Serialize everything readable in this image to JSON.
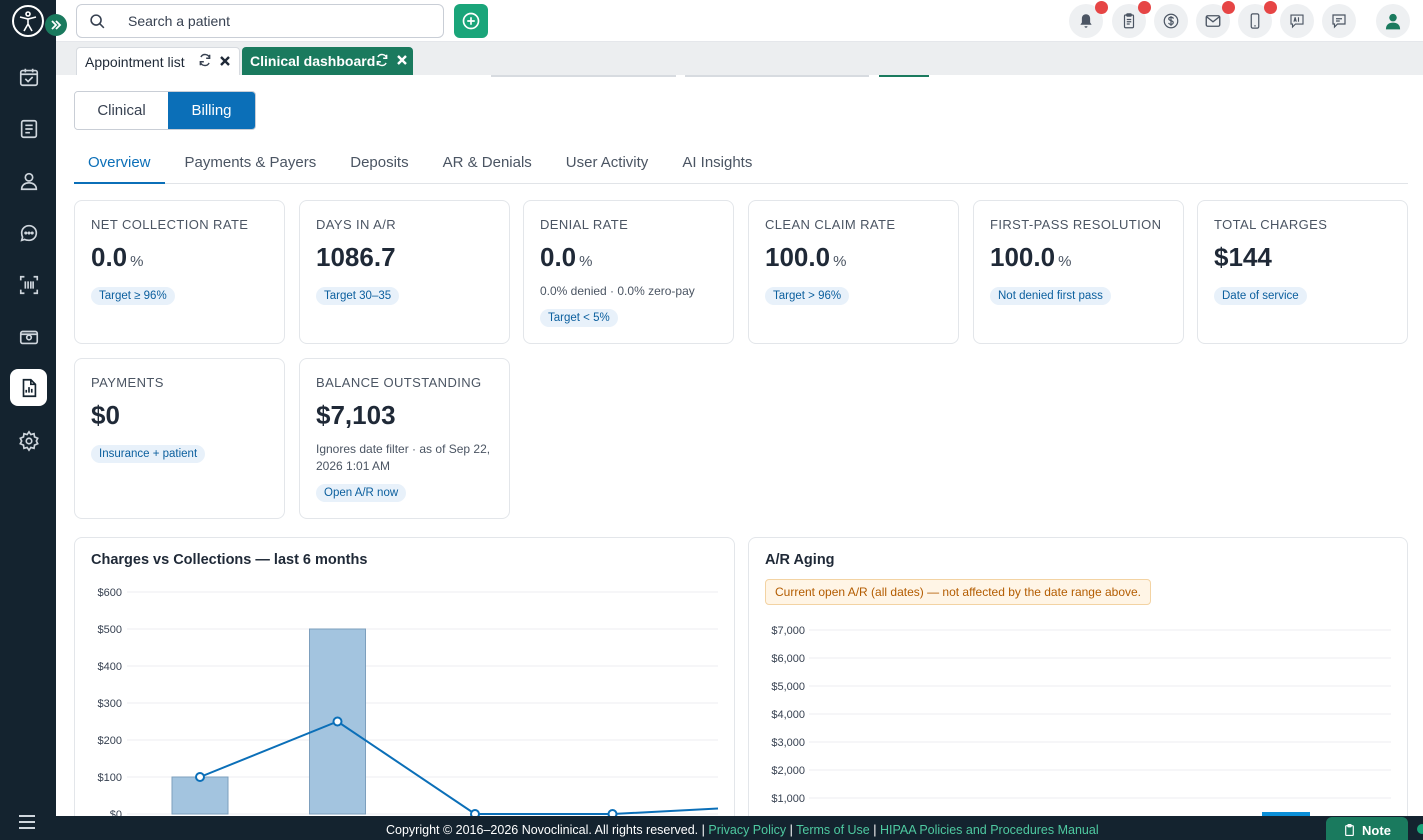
{
  "search": {
    "placeholder": "Search a patient"
  },
  "tabs": [
    {
      "label": "Appointment list",
      "active": false
    },
    {
      "label": "Clinical dashboard",
      "active": true
    }
  ],
  "segment": {
    "clinical": "Clinical",
    "billing": "Billing",
    "selected": "Billing"
  },
  "subtabs": [
    "Overview",
    "Payments & Payers",
    "Deposits",
    "AR & Denials",
    "User Activity",
    "AI Insights"
  ],
  "kpis": {
    "net_collection": {
      "title": "NET COLLECTION RATE",
      "value": "0.0",
      "unit": "%",
      "pill": "Target ≥ 96%"
    },
    "days_ar": {
      "title": "DAYS IN A/R",
      "value": "1086.7",
      "pill": "Target 30–35"
    },
    "denial": {
      "title": "DENIAL RATE",
      "value": "0.0",
      "unit": "%",
      "note": "0.0% denied · 0.0% zero-pay",
      "pill": "Target < 5%"
    },
    "clean_claim": {
      "title": "CLEAN CLAIM RATE",
      "value": "100.0",
      "unit": "%",
      "pill": "Target > 96%"
    },
    "first_pass": {
      "title": "FIRST-PASS RESOLUTION",
      "value": "100.0",
      "unit": "%",
      "pill": "Not denied first pass"
    },
    "total_charges": {
      "title": "TOTAL CHARGES",
      "value": "$144",
      "pill": "Date of service"
    },
    "payments": {
      "title": "PAYMENTS",
      "value": "$0",
      "pill": "Insurance + patient"
    },
    "balance": {
      "title": "BALANCE OUTSTANDING",
      "value": "$7,103",
      "note": "Ignores date filter · as of Sep 22, 2026 1:01 AM",
      "pill": "Open A/R now"
    }
  },
  "charts_panel": {
    "charges_title": "Charges vs Collections — last 6 months",
    "aging_title": "A/R Aging",
    "aging_warning": "Current open A/R (all dates) — not affected by the date range above."
  },
  "chart_data": [
    {
      "type": "bar",
      "title": "Charges vs Collections — last 6 months",
      "y_ticks": [
        "$0",
        "$100",
        "$200",
        "$300",
        "$400",
        "$500",
        "$600"
      ],
      "ylim": [
        0,
        600
      ],
      "grid": true,
      "bars": [
        100,
        500,
        0,
        0,
        0
      ],
      "line": [
        100,
        250,
        0,
        0,
        15
      ],
      "colors": {
        "bar": "#a3c4df",
        "line": "#0b6fb8"
      }
    },
    {
      "type": "bar",
      "title": "A/R Aging",
      "y_ticks": [
        "$1,000",
        "$2,000",
        "$3,000",
        "$4,000",
        "$5,000",
        "$6,000",
        "$7,000"
      ],
      "ylim": [
        0,
        7000
      ],
      "grid": true,
      "bars": [
        0,
        0,
        0,
        300
      ],
      "colors": {
        "bar": "#0b8fd8"
      }
    }
  ],
  "footer": {
    "copyright": "Copyright © 2016–2026 Novoclinical. All rights reserved.",
    "privacy": "Privacy Policy",
    "terms": "Terms of Use",
    "hipaa": "HIPAA Policies and Procedures Manual",
    "note_label": "Note"
  }
}
